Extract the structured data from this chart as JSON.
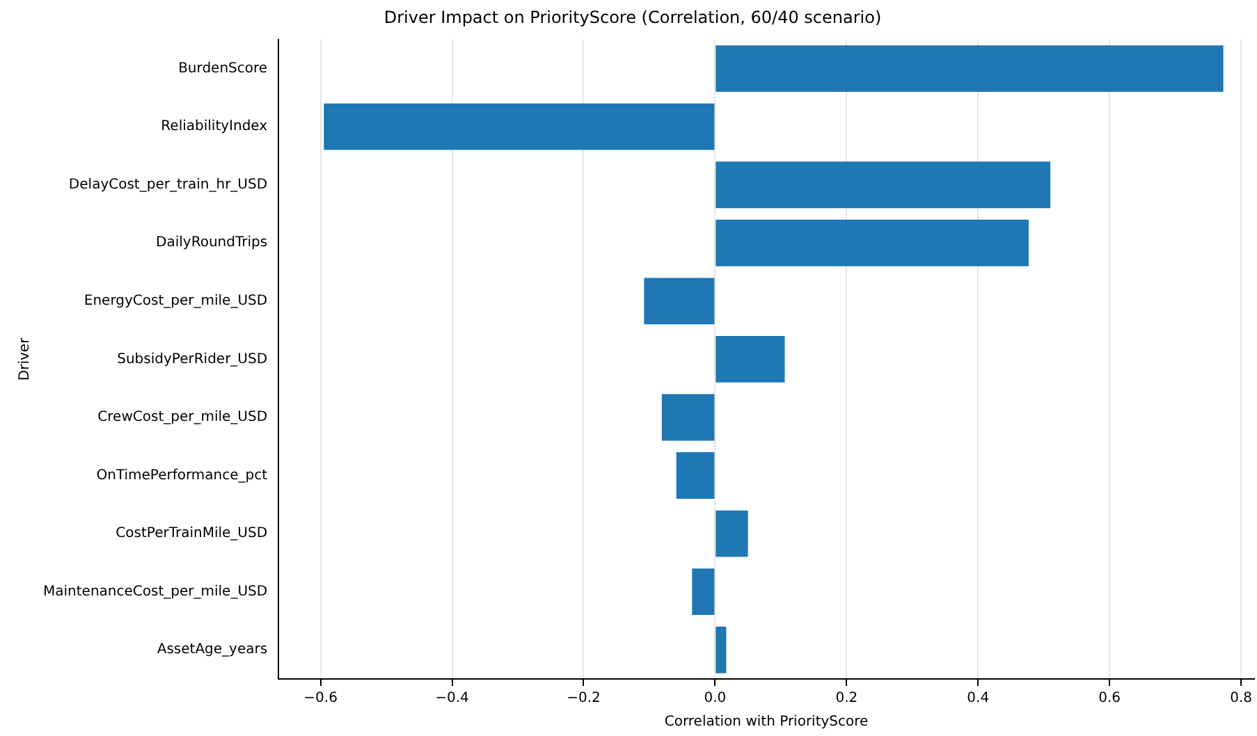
{
  "chart_data": {
    "type": "bar",
    "orientation": "horizontal",
    "title": "Driver Impact on PriorityScore (Correlation, 60/40 scenario)",
    "xlabel": "Correlation with PriorityScore",
    "ylabel": "Driver",
    "categories": [
      "BurdenScore",
      "ReliabilityIndex",
      "DelayCost_per_train_hr_USD",
      "DailyRoundTrips",
      "EnergyCost_per_mile_USD",
      "SubsidyPerRider_USD",
      "CrewCost_per_mile_USD",
      "OnTimePerformance_pct",
      "CostPerTrainMile_USD",
      "MaintenanceCost_per_mile_USD",
      "AssetAge_years"
    ],
    "values": [
      0.773,
      -0.595,
      0.51,
      0.477,
      -0.108,
      0.106,
      -0.081,
      -0.059,
      0.05,
      -0.035,
      0.017
    ],
    "color": "#1f77b4",
    "xlim": [
      -0.664,
      0.82
    ],
    "xticks": [
      {
        "value": -0.6,
        "label": "−0.6"
      },
      {
        "value": -0.4,
        "label": "−0.4"
      },
      {
        "value": -0.2,
        "label": "−0.2"
      },
      {
        "value": 0,
        "label": "0.0"
      },
      {
        "value": 0.2,
        "label": "0.2"
      },
      {
        "value": 0.4,
        "label": "0.4"
      },
      {
        "value": 0.6,
        "label": "0.6"
      },
      {
        "value": 0.8,
        "label": "0.8"
      }
    ],
    "grid": "x",
    "legend": false
  }
}
